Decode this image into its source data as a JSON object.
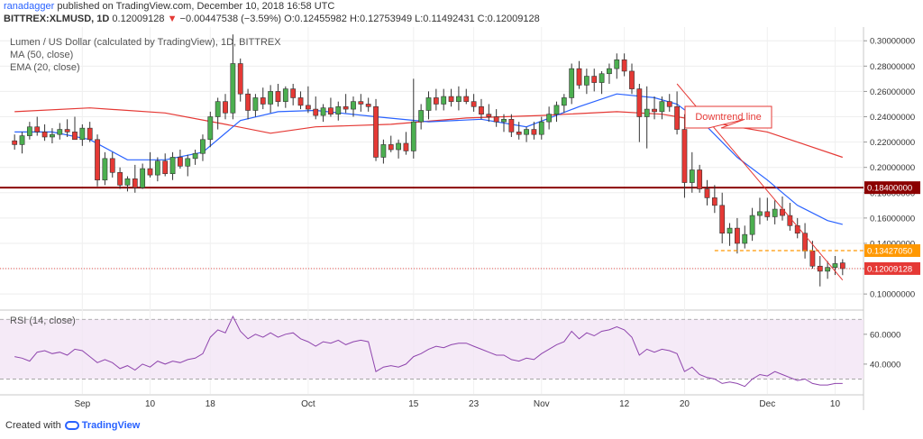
{
  "header": {
    "author": "ranadagger",
    "published_text": "published on TradingView.com, December 10, 2018 16:58 UTC",
    "symbol_line": "BITTREX:XLMUSD, 1D",
    "last_price": "0.12009128",
    "change_arrow": "▼",
    "change": "−0.00447538 (−3.59%)",
    "ohlc": "O:0.12455982 H:0.12753949 L:0.11492431 C:0.12009128"
  },
  "legend": {
    "title": "Lumen / US Dollar (calculated by TradingView), 1D, BITTREX",
    "ma": "MA (50, close)",
    "ema": "EMA (20, close)",
    "rsi": "RSI (14, close)"
  },
  "footer": {
    "created_with": "Created with",
    "brand": "TradingView"
  },
  "colors": {
    "up": "#4caf50",
    "down": "#e53935",
    "ma": "#e53935",
    "ema": "#2962ff",
    "rsi": "#8e44ad",
    "support": "#8b0000",
    "dashed": "#ff9800",
    "callout": "#e53935"
  },
  "chart_data": [
    {
      "type": "candlestick",
      "title": "Lumen / US Dollar (calculated by TradingView), 1D, BITTREX",
      "y_ticks": [
        0.1,
        0.12,
        0.14,
        0.16,
        0.18,
        0.2,
        0.22,
        0.24,
        0.26,
        0.28,
        0.3
      ],
      "y_tick_labels": [
        "0.10000000",
        "0.12000000",
        "0.14000000",
        "0.16000000",
        "0.18000000",
        "0.20000000",
        "0.22000000",
        "0.24000000",
        "0.26000000",
        "0.28000000",
        "0.30000000"
      ],
      "ylim": [
        0.088,
        0.308
      ],
      "x_labels": [
        {
          "label": "Sep",
          "day": 9
        },
        {
          "label": "10",
          "day": 18
        },
        {
          "label": "18",
          "day": 26
        },
        {
          "label": "Oct",
          "day": 39
        },
        {
          "label": "15",
          "day": 53
        },
        {
          "label": "23",
          "day": 61
        },
        {
          "label": "Nov",
          "day": 70
        },
        {
          "label": "12",
          "day": 81
        },
        {
          "label": "20",
          "day": 89
        },
        {
          "label": "Dec",
          "day": 100
        },
        {
          "label": "10",
          "day": 109
        }
      ],
      "candles": [
        [
          0.221,
          0.226,
          0.214,
          0.218
        ],
        [
          0.218,
          0.228,
          0.211,
          0.225
        ],
        [
          0.225,
          0.236,
          0.222,
          0.232
        ],
        [
          0.232,
          0.24,
          0.225,
          0.228
        ],
        [
          0.228,
          0.234,
          0.221,
          0.224
        ],
        [
          0.224,
          0.231,
          0.219,
          0.226
        ],
        [
          0.226,
          0.235,
          0.222,
          0.23
        ],
        [
          0.23,
          0.238,
          0.224,
          0.228
        ],
        [
          0.228,
          0.24,
          0.222,
          0.222
        ],
        [
          0.222,
          0.234,
          0.217,
          0.231
        ],
        [
          0.231,
          0.236,
          0.22,
          0.222
        ],
        [
          0.222,
          0.226,
          0.185,
          0.19
        ],
        [
          0.19,
          0.212,
          0.186,
          0.207
        ],
        [
          0.207,
          0.212,
          0.192,
          0.196
        ],
        [
          0.196,
          0.2,
          0.183,
          0.186
        ],
        [
          0.186,
          0.193,
          0.181,
          0.191
        ],
        [
          0.191,
          0.202,
          0.18,
          0.184
        ],
        [
          0.184,
          0.203,
          0.183,
          0.199
        ],
        [
          0.199,
          0.212,
          0.192,
          0.194
        ],
        [
          0.194,
          0.208,
          0.189,
          0.205
        ],
        [
          0.205,
          0.211,
          0.193,
          0.195
        ],
        [
          0.195,
          0.212,
          0.19,
          0.208
        ],
        [
          0.208,
          0.214,
          0.199,
          0.201
        ],
        [
          0.201,
          0.21,
          0.193,
          0.207
        ],
        [
          0.207,
          0.214,
          0.202,
          0.211
        ],
        [
          0.211,
          0.226,
          0.205,
          0.222
        ],
        [
          0.222,
          0.244,
          0.216,
          0.24
        ],
        [
          0.24,
          0.255,
          0.23,
          0.252
        ],
        [
          0.252,
          0.258,
          0.238,
          0.243
        ],
        [
          0.243,
          0.305,
          0.238,
          0.282
        ],
        [
          0.282,
          0.286,
          0.252,
          0.258
        ],
        [
          0.258,
          0.262,
          0.238,
          0.245
        ],
        [
          0.245,
          0.258,
          0.24,
          0.255
        ],
        [
          0.255,
          0.263,
          0.246,
          0.25
        ],
        [
          0.25,
          0.265,
          0.243,
          0.26
        ],
        [
          0.26,
          0.266,
          0.248,
          0.252
        ],
        [
          0.252,
          0.264,
          0.247,
          0.262
        ],
        [
          0.262,
          0.266,
          0.249,
          0.255
        ],
        [
          0.255,
          0.26,
          0.246,
          0.249
        ],
        [
          0.249,
          0.264,
          0.243,
          0.246
        ],
        [
          0.246,
          0.256,
          0.238,
          0.241
        ],
        [
          0.241,
          0.25,
          0.236,
          0.247
        ],
        [
          0.247,
          0.255,
          0.24,
          0.242
        ],
        [
          0.242,
          0.252,
          0.237,
          0.248
        ],
        [
          0.248,
          0.258,
          0.243,
          0.246
        ],
        [
          0.246,
          0.256,
          0.24,
          0.252
        ],
        [
          0.252,
          0.258,
          0.244,
          0.25
        ],
        [
          0.25,
          0.255,
          0.244,
          0.248
        ],
        [
          0.248,
          0.254,
          0.205,
          0.208
        ],
        [
          0.208,
          0.222,
          0.203,
          0.218
        ],
        [
          0.218,
          0.225,
          0.212,
          0.214
        ],
        [
          0.214,
          0.222,
          0.207,
          0.219
        ],
        [
          0.219,
          0.228,
          0.21,
          0.213
        ],
        [
          0.213,
          0.27,
          0.207,
          0.236
        ],
        [
          0.236,
          0.25,
          0.23,
          0.245
        ],
        [
          0.245,
          0.26,
          0.238,
          0.255
        ],
        [
          0.255,
          0.262,
          0.245,
          0.25
        ],
        [
          0.25,
          0.262,
          0.245,
          0.256
        ],
        [
          0.256,
          0.262,
          0.248,
          0.252
        ],
        [
          0.252,
          0.264,
          0.245,
          0.256
        ],
        [
          0.256,
          0.262,
          0.25,
          0.252
        ],
        [
          0.252,
          0.258,
          0.244,
          0.248
        ],
        [
          0.248,
          0.254,
          0.238,
          0.242
        ],
        [
          0.242,
          0.25,
          0.236,
          0.24
        ],
        [
          0.24,
          0.246,
          0.232,
          0.236
        ],
        [
          0.236,
          0.242,
          0.228,
          0.238
        ],
        [
          0.238,
          0.242,
          0.224,
          0.228
        ],
        [
          0.228,
          0.236,
          0.222,
          0.226
        ],
        [
          0.226,
          0.232,
          0.22,
          0.23
        ],
        [
          0.23,
          0.236,
          0.222,
          0.226
        ],
        [
          0.226,
          0.24,
          0.222,
          0.236
        ],
        [
          0.236,
          0.248,
          0.23,
          0.242
        ],
        [
          0.242,
          0.252,
          0.236,
          0.249
        ],
        [
          0.249,
          0.258,
          0.243,
          0.255
        ],
        [
          0.255,
          0.282,
          0.25,
          0.278
        ],
        [
          0.278,
          0.284,
          0.262,
          0.265
        ],
        [
          0.265,
          0.278,
          0.258,
          0.272
        ],
        [
          0.272,
          0.278,
          0.26,
          0.267
        ],
        [
          0.267,
          0.276,
          0.258,
          0.274
        ],
        [
          0.274,
          0.282,
          0.266,
          0.278
        ],
        [
          0.278,
          0.29,
          0.27,
          0.285
        ],
        [
          0.285,
          0.29,
          0.272,
          0.276
        ],
        [
          0.276,
          0.282,
          0.258,
          0.262
        ],
        [
          0.262,
          0.266,
          0.22,
          0.24
        ],
        [
          0.24,
          0.264,
          0.215,
          0.246
        ],
        [
          0.246,
          0.256,
          0.238,
          0.244
        ],
        [
          0.244,
          0.256,
          0.238,
          0.252
        ],
        [
          0.252,
          0.258,
          0.244,
          0.248
        ],
        [
          0.248,
          0.26,
          0.226,
          0.23
        ],
        [
          0.23,
          0.242,
          0.176,
          0.188
        ],
        [
          0.188,
          0.212,
          0.18,
          0.198
        ],
        [
          0.198,
          0.202,
          0.18,
          0.183
        ],
        [
          0.183,
          0.19,
          0.17,
          0.176
        ],
        [
          0.176,
          0.186,
          0.164,
          0.17
        ],
        [
          0.17,
          0.18,
          0.14,
          0.148
        ],
        [
          0.148,
          0.156,
          0.138,
          0.152
        ],
        [
          0.152,
          0.16,
          0.132,
          0.14
        ],
        [
          0.14,
          0.154,
          0.136,
          0.147
        ],
        [
          0.147,
          0.168,
          0.142,
          0.162
        ],
        [
          0.162,
          0.176,
          0.155,
          0.165
        ],
        [
          0.165,
          0.176,
          0.158,
          0.161
        ],
        [
          0.161,
          0.174,
          0.155,
          0.167
        ],
        [
          0.167,
          0.177,
          0.158,
          0.162
        ],
        [
          0.162,
          0.172,
          0.15,
          0.154
        ],
        [
          0.154,
          0.16,
          0.144,
          0.148
        ],
        [
          0.148,
          0.156,
          0.128,
          0.134
        ],
        [
          0.134,
          0.142,
          0.12,
          0.122
        ],
        [
          0.122,
          0.13,
          0.106,
          0.118
        ],
        [
          0.118,
          0.126,
          0.112,
          0.121
        ],
        [
          0.121,
          0.13,
          0.115,
          0.124
        ],
        [
          0.1246,
          0.1275,
          0.1149,
          0.1201
        ]
      ],
      "ma50": [
        [
          0,
          0.244
        ],
        [
          10,
          0.247
        ],
        [
          20,
          0.243
        ],
        [
          28,
          0.234
        ],
        [
          34,
          0.227
        ],
        [
          40,
          0.232
        ],
        [
          50,
          0.234
        ],
        [
          60,
          0.239
        ],
        [
          70,
          0.241
        ],
        [
          80,
          0.244
        ],
        [
          86,
          0.242
        ],
        [
          92,
          0.236
        ],
        [
          100,
          0.228
        ],
        [
          105,
          0.218
        ],
        [
          110,
          0.208
        ]
      ],
      "ema20": [
        [
          0,
          0.228
        ],
        [
          5,
          0.228
        ],
        [
          10,
          0.222
        ],
        [
          15,
          0.206
        ],
        [
          20,
          0.206
        ],
        [
          25,
          0.212
        ],
        [
          30,
          0.237
        ],
        [
          35,
          0.244
        ],
        [
          40,
          0.245
        ],
        [
          48,
          0.24
        ],
        [
          55,
          0.236
        ],
        [
          62,
          0.238
        ],
        [
          68,
          0.232
        ],
        [
          75,
          0.248
        ],
        [
          80,
          0.258
        ],
        [
          85,
          0.255
        ],
        [
          88,
          0.25
        ],
        [
          92,
          0.232
        ],
        [
          96,
          0.208
        ],
        [
          100,
          0.19
        ],
        [
          104,
          0.17
        ],
        [
          108,
          0.158
        ],
        [
          110,
          0.155
        ]
      ],
      "support_level": 0.184,
      "support_label": "0.18400000",
      "resistance_level": 0.1343,
      "resistance_label": "0.13427050",
      "last_label": "0.12009128",
      "trendline": [
        [
          88,
          0.266
        ],
        [
          110,
          0.111
        ]
      ],
      "annotation": "Downtrend line"
    },
    {
      "type": "line",
      "title": "RSI (14, close)",
      "y_ticks": [
        40,
        60
      ],
      "y_tick_labels": [
        "40.0000",
        "60.0000"
      ],
      "ylim": [
        20,
        75
      ],
      "bands": [
        30,
        70
      ],
      "values": [
        45,
        44,
        42,
        48,
        49,
        47,
        48,
        46,
        50,
        49,
        45,
        41,
        43,
        41,
        37,
        39,
        36,
        40,
        38,
        42,
        40,
        42,
        41,
        43,
        44,
        47,
        58,
        63,
        61,
        72,
        62,
        57,
        60,
        58,
        61,
        58,
        60,
        61,
        57,
        55,
        52,
        55,
        54,
        56,
        53,
        55,
        56,
        55,
        35,
        38,
        39,
        38,
        40,
        45,
        47,
        50,
        52,
        51,
        53,
        54,
        54,
        52,
        50,
        48,
        46,
        46,
        43,
        42,
        44,
        43,
        47,
        50,
        53,
        55,
        62,
        57,
        61,
        59,
        62,
        63,
        65,
        63,
        58,
        46,
        50,
        48,
        50,
        49,
        47,
        35,
        38,
        33,
        31,
        30,
        27,
        28,
        27,
        25,
        30,
        33,
        32,
        35,
        33,
        31,
        29,
        30,
        27,
        26,
        26,
        27,
        27
      ]
    }
  ]
}
